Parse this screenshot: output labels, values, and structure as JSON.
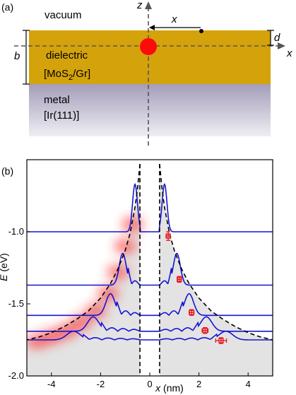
{
  "figure": {
    "panel_a": {
      "label": "(a)",
      "vacuum_label": "vacuum",
      "dielectric_label": "dielectric",
      "dielectric_material_pre": "[MoS",
      "dielectric_material_sub": "2",
      "dielectric_material_post": "/Gr]",
      "metal_label": "metal",
      "metal_material": "[Ir(111)]",
      "axis_z": "z",
      "axis_x": "x",
      "dim_x": "x",
      "dim_d": "d",
      "dim_b": "b",
      "colors": {
        "dielectric": "#d4a20a",
        "metal_top": "#a49dba",
        "metal_bottom": "#efeef3",
        "charge": "#ff0a0a"
      }
    },
    "panel_b": {
      "label": "(b)",
      "xlabel_var": "x",
      "xlabel_unit": " (nm)",
      "ylabel_var": "E",
      "ylabel_unit": " (eV)"
    }
  },
  "chart_data": {
    "type": "line",
    "xlim": [
      -5,
      5
    ],
    "ylim": [
      -2.0,
      -0.5
    ],
    "x_ticks": [
      {
        "value": -4,
        "label": "-4"
      },
      {
        "value": -2,
        "label": "-2"
      },
      {
        "value": 0,
        "label": "0"
      },
      {
        "value": 2,
        "label": "2"
      },
      {
        "value": 4,
        "label": "4"
      }
    ],
    "y_ticks": [
      {
        "value": -1.0,
        "label": "-1.0"
      },
      {
        "value": -1.5,
        "label": "-1.5"
      },
      {
        "value": -2.0,
        "label": "-2.0"
      }
    ],
    "potential_curve": {
      "x": [
        0.4,
        0.5,
        0.6,
        0.8,
        1.0,
        1.3,
        1.6,
        2.0,
        2.5,
        3.0,
        3.5,
        4.0,
        4.5,
        5.0
      ],
      "y": [
        -0.53,
        -0.7,
        -0.83,
        -1.01,
        -1.13,
        -1.26,
        -1.36,
        -1.46,
        -1.55,
        -1.61,
        -1.66,
        -1.7,
        -1.73,
        -1.75
      ],
      "barrier_x": 0.4,
      "color": "#000000"
    },
    "wavefunction_levels": [
      {
        "energy": -1.0,
        "peak_x": 0.6,
        "amplitude": 0.33,
        "color": "#1414d4"
      },
      {
        "energy": -1.37,
        "peak_x": 1.1,
        "amplitude": 0.22,
        "color": "#1414d4"
      },
      {
        "energy": -1.58,
        "peak_x": 1.6,
        "amplitude": 0.15,
        "color": "#1414d4"
      },
      {
        "energy": -1.69,
        "peak_x": 2.3,
        "amplitude": 0.1,
        "color": "#1414d4"
      },
      {
        "energy": -1.75,
        "peak_x": 3.1,
        "amplitude": 0.06,
        "color": "#1414d4"
      }
    ],
    "experimental_points": [
      {
        "x": 0.75,
        "y": -1.03,
        "xerr": 0.07,
        "yerr": 0.03
      },
      {
        "x": 1.2,
        "y": -1.33,
        "xerr": 0.07,
        "yerr": 0.02
      },
      {
        "x": 1.7,
        "y": -1.56,
        "xerr": 0.1,
        "yerr": 0.02
      },
      {
        "x": 2.25,
        "y": -1.685,
        "xerr": 0.12,
        "yerr": 0.02
      },
      {
        "x": 2.9,
        "y": -1.755,
        "xerr": 0.22,
        "yerr": 0.02
      }
    ],
    "point_color": "#e8141e",
    "density_map": {
      "color": "#ff3030",
      "x": [
        -0.7,
        -1.0,
        -1.3,
        -1.7,
        -2.2,
        -2.8,
        -3.4,
        -4.0,
        -4.6
      ],
      "y": [
        -0.95,
        -1.1,
        -1.28,
        -1.43,
        -1.55,
        -1.63,
        -1.69,
        -1.73,
        -1.76
      ]
    }
  }
}
